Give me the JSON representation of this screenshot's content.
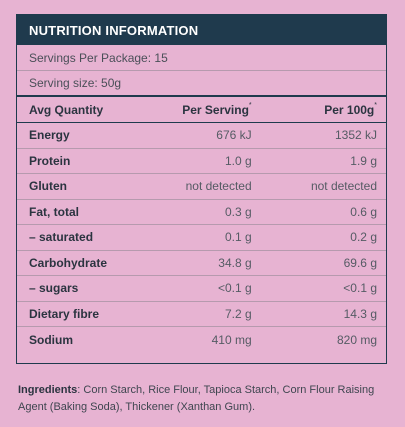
{
  "panel": {
    "title": "NUTRITION INFORMATION",
    "servings_per_package": "Servings Per Package: 15",
    "serving_size": "Serving size: 50g"
  },
  "table": {
    "headers": {
      "quantity": "Avg Quantity",
      "per_serving": "Per Serving",
      "per_100g": "Per 100g",
      "footnote_mark": "*"
    },
    "rows": [
      {
        "name": "Energy",
        "per_serving": "676 kJ",
        "per_100g": "1352 kJ"
      },
      {
        "name": "Protein",
        "per_serving": "1.0 g",
        "per_100g": "1.9 g"
      },
      {
        "name": "Gluten",
        "per_serving": "not detected",
        "per_100g": "not detected"
      },
      {
        "name": "Fat, total",
        "per_serving": "0.3 g",
        "per_100g": "0.6 g"
      },
      {
        "name": "– saturated",
        "per_serving": "0.1 g",
        "per_100g": "0.2 g"
      },
      {
        "name": "Carbohydrate",
        "per_serving": "34.8 g",
        "per_100g": "69.6 g"
      },
      {
        "name": "– sugars",
        "per_serving": "<0.1 g",
        "per_100g": "<0.1 g"
      },
      {
        "name": "Dietary fibre",
        "per_serving": "7.2 g",
        "per_100g": "14.3 g"
      },
      {
        "name": "Sodium",
        "per_serving": "410 mg",
        "per_100g": "820 mg"
      }
    ]
  },
  "ingredients": {
    "label": "Ingredients",
    "text": ": Corn Starch, Rice Flour, Tapioca Starch, Corn Flour Raising Agent (Baking Soda), Thickener (Xanthan Gum)."
  },
  "colors": {
    "background": "#e7b3d2",
    "header": "#1f3a4d"
  }
}
